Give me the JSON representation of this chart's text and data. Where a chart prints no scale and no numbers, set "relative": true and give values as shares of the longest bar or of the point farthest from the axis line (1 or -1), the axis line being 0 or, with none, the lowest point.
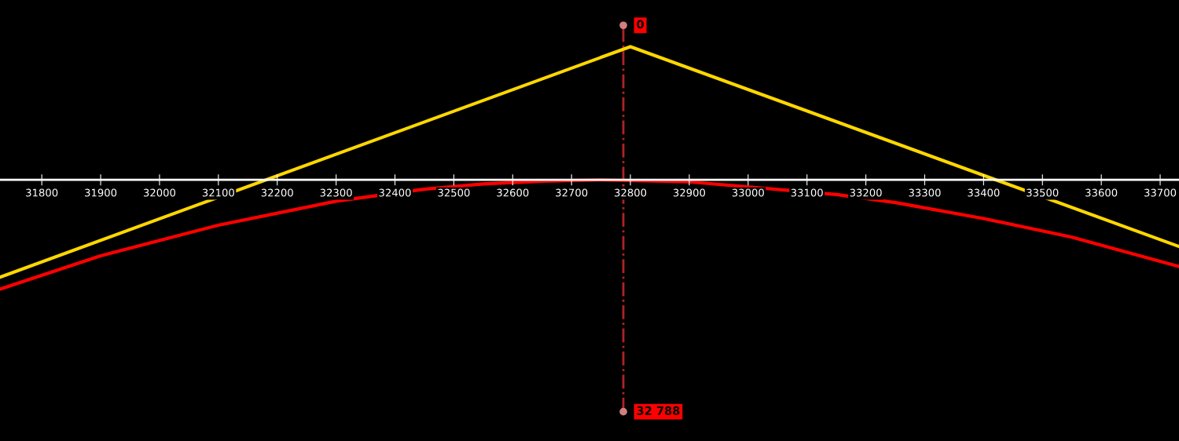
{
  "chart_data": {
    "type": "line",
    "relative": true,
    "xlim": [
      31729,
      33732
    ],
    "xticks": [
      31800,
      31900,
      32000,
      32100,
      32200,
      32300,
      32400,
      32500,
      32600,
      32700,
      32800,
      32900,
      33000,
      33100,
      33200,
      33300,
      33400,
      33500,
      33600,
      33700
    ],
    "series": [
      {
        "color": "#ffd700",
        "x": [
          31729,
          32800,
          33732
        ],
        "values": [
          -0.73,
          1.0,
          -0.5
        ]
      },
      {
        "color": "#ff0000",
        "x": [
          31729,
          31900,
          32100,
          32300,
          32450,
          32550,
          32650,
          32750,
          32900,
          33150,
          33250,
          33400,
          33550,
          33732
        ],
        "values": [
          -0.82,
          -0.57,
          -0.34,
          -0.16,
          -0.07,
          -0.03,
          -0.01,
          0,
          -0.015,
          -0.11,
          -0.17,
          -0.29,
          -0.43,
          -0.65
        ]
      }
    ],
    "ref_lines": [
      {
        "axis": "x",
        "value": 32788,
        "color": "#b22222",
        "line_style": "dashdot"
      }
    ],
    "annotations": [
      {
        "text": "0",
        "x": 32788,
        "y": 1.16
      },
      {
        "text": "32 788",
        "x": 32788,
        "y": -1.74
      }
    ],
    "grid": false,
    "legend": false
  }
}
